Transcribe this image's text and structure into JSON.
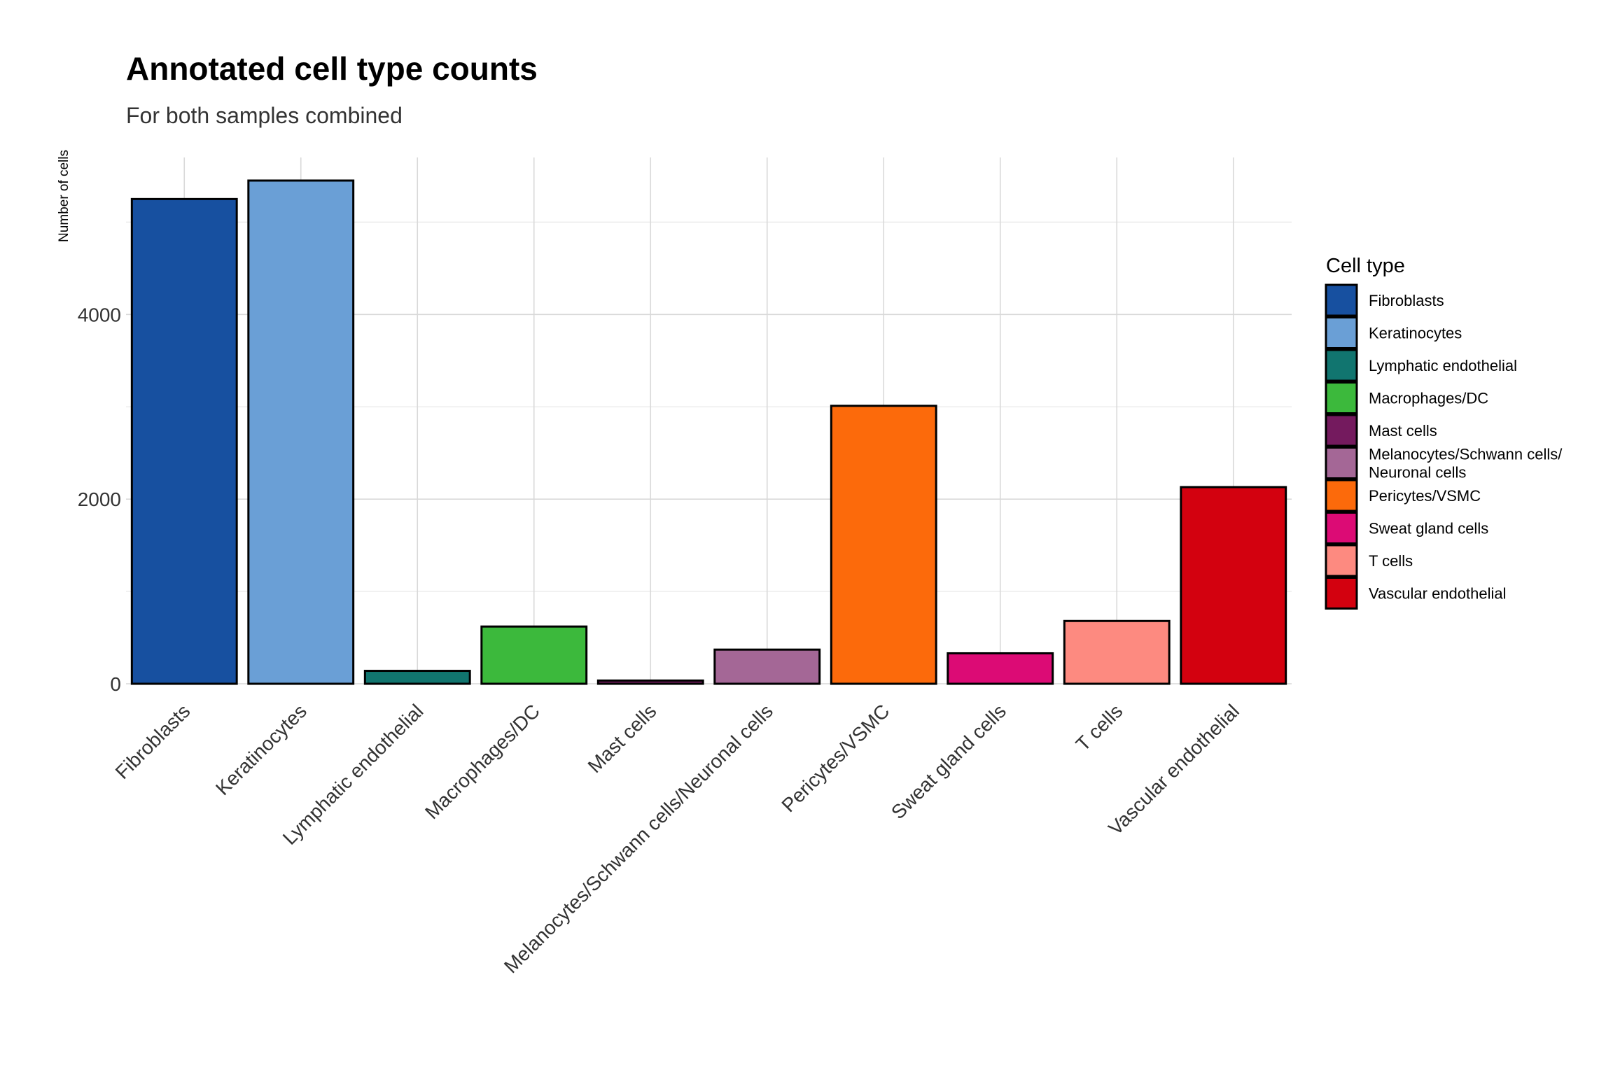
{
  "chart_data": {
    "type": "bar",
    "title": "Annotated cell type counts",
    "subtitle": "For both samples combined",
    "xlabel": "",
    "ylabel": "Number of cells",
    "ylim": [
      0,
      5700
    ],
    "y_ticks": [
      0,
      2000,
      4000
    ],
    "grid": true,
    "legend": {
      "title": "Cell type",
      "placement": "right",
      "entries": [
        "Fibroblasts",
        "Keratinocytes",
        "Lymphatic endothelial",
        "Macrophages/DC",
        "Mast cells",
        "Melanocytes/Schwann cells/\nNeuronal cells",
        "Pericytes/VSMC",
        "Sweat gland cells",
        "T cells",
        "Vascular endothelial"
      ]
    },
    "categories": [
      "Fibroblasts",
      "Keratinocytes",
      "Lymphatic endothelial",
      "Macrophages/DC",
      "Mast cells",
      "Melanocytes/Schwann cells/Neuronal cells",
      "Pericytes/VSMC",
      "Sweat gland cells",
      "T cells",
      "Vascular endothelial"
    ],
    "values": [
      5250,
      5450,
      140,
      620,
      35,
      370,
      3010,
      330,
      680,
      2130
    ],
    "colors": [
      "#1750A0",
      "#6A9FD6",
      "#11756F",
      "#3CB93C",
      "#741A5E",
      "#A46796",
      "#FC6A0B",
      "#DC0B75",
      "#FD8A80",
      "#D3010F"
    ]
  }
}
